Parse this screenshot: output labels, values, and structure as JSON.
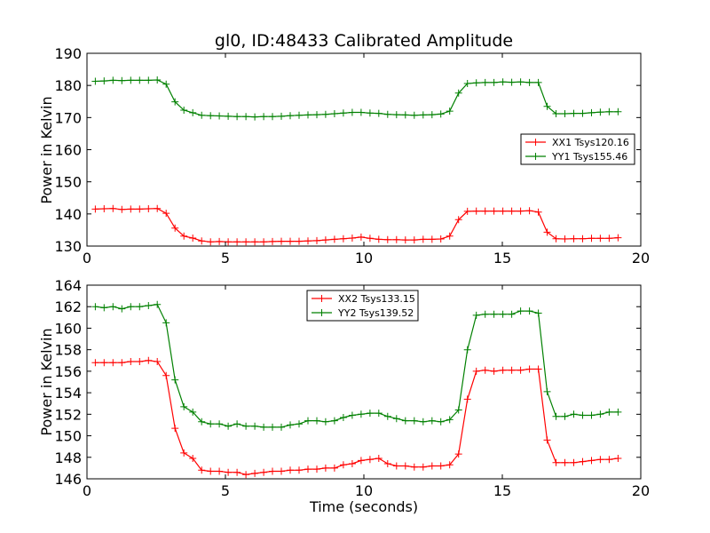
{
  "chart_data": [
    {
      "type": "line",
      "title": "gl0, ID:48433 Calibrated Amplitude",
      "xlabel": "",
      "ylabel": "Power in Kelvin",
      "xlim": [
        0,
        20
      ],
      "ylim": [
        130,
        190
      ],
      "xticks": [
        "0",
        "5",
        "10",
        "15",
        "20"
      ],
      "yticks": [
        "130",
        "140",
        "150",
        "160",
        "170",
        "180",
        "190"
      ],
      "grid": false,
      "legend_position": "center-right",
      "x": [
        0.3,
        0.62,
        0.94,
        1.26,
        1.58,
        1.9,
        2.22,
        2.54,
        2.86,
        3.18,
        3.5,
        3.82,
        4.14,
        4.46,
        4.78,
        5.1,
        5.42,
        5.74,
        6.06,
        6.38,
        6.7,
        7.02,
        7.34,
        7.66,
        7.98,
        8.3,
        8.62,
        8.94,
        9.26,
        9.58,
        9.9,
        10.22,
        10.54,
        10.86,
        11.18,
        11.5,
        11.82,
        12.14,
        12.46,
        12.78,
        13.1,
        13.42,
        13.74,
        14.06,
        14.38,
        14.7,
        15.02,
        15.34,
        15.66,
        15.98,
        16.3,
        16.62,
        16.94,
        17.26,
        17.58,
        17.9,
        18.22,
        18.54,
        18.86,
        19.18
      ],
      "series": [
        {
          "name": "XX1 Tsys120.16",
          "color": "#ff0000",
          "values": [
            141.5,
            141.6,
            141.7,
            141.4,
            141.5,
            141.5,
            141.6,
            141.7,
            140.2,
            135.6,
            133.1,
            132.5,
            131.6,
            131.3,
            131.4,
            131.3,
            131.3,
            131.3,
            131.3,
            131.3,
            131.4,
            131.5,
            131.5,
            131.5,
            131.6,
            131.7,
            131.9,
            132.1,
            132.3,
            132.5,
            132.8,
            132.4,
            132.1,
            132.0,
            132.0,
            131.9,
            131.9,
            132.1,
            132.1,
            132.2,
            133.1,
            138.2,
            140.8,
            140.9,
            140.9,
            140.9,
            140.9,
            140.9,
            140.9,
            141.0,
            140.6,
            134.3,
            132.3,
            132.2,
            132.3,
            132.3,
            132.4,
            132.4,
            132.4,
            132.6
          ]
        },
        {
          "name": "YY1 Tsys155.46",
          "color": "#008000",
          "values": [
            181.3,
            181.4,
            181.6,
            181.5,
            181.6,
            181.6,
            181.6,
            181.7,
            180.4,
            174.9,
            172.3,
            171.5,
            170.7,
            170.6,
            170.5,
            170.4,
            170.3,
            170.3,
            170.2,
            170.3,
            170.3,
            170.4,
            170.6,
            170.7,
            170.8,
            170.9,
            171.0,
            171.2,
            171.4,
            171.6,
            171.6,
            171.4,
            171.3,
            171.0,
            170.9,
            170.8,
            170.7,
            170.8,
            170.9,
            171.1,
            172.0,
            177.6,
            180.6,
            180.8,
            180.9,
            180.9,
            181.1,
            181.0,
            181.1,
            180.9,
            180.9,
            173.5,
            171.2,
            171.2,
            171.3,
            171.3,
            171.5,
            171.7,
            171.8,
            171.8
          ]
        }
      ]
    },
    {
      "type": "line",
      "title": "",
      "xlabel": "Time (seconds)",
      "ylabel": "Power in Kelvin",
      "xlim": [
        0,
        20
      ],
      "ylim": [
        146,
        164
      ],
      "xticks": [
        "0",
        "5",
        "10",
        "15",
        "20"
      ],
      "yticks": [
        "146",
        "148",
        "150",
        "152",
        "154",
        "156",
        "158",
        "160",
        "162",
        "164"
      ],
      "grid": false,
      "legend_position": "upper-center",
      "x": [
        0.3,
        0.62,
        0.94,
        1.26,
        1.58,
        1.9,
        2.22,
        2.54,
        2.86,
        3.18,
        3.5,
        3.82,
        4.14,
        4.46,
        4.78,
        5.1,
        5.42,
        5.74,
        6.06,
        6.38,
        6.7,
        7.02,
        7.34,
        7.66,
        7.98,
        8.3,
        8.62,
        8.94,
        9.26,
        9.58,
        9.9,
        10.22,
        10.54,
        10.86,
        11.18,
        11.5,
        11.82,
        12.14,
        12.46,
        12.78,
        13.1,
        13.42,
        13.74,
        14.06,
        14.38,
        14.7,
        15.02,
        15.34,
        15.66,
        15.98,
        16.3,
        16.62,
        16.94,
        17.26,
        17.58,
        17.9,
        18.22,
        18.54,
        18.86,
        19.18
      ],
      "series": [
        {
          "name": "XX2 Tsys133.15",
          "color": "#ff0000",
          "values": [
            156.8,
            156.8,
            156.8,
            156.8,
            156.9,
            156.9,
            157.0,
            156.9,
            155.6,
            150.7,
            148.4,
            147.9,
            146.8,
            146.7,
            146.7,
            146.6,
            146.6,
            146.4,
            146.5,
            146.6,
            146.7,
            146.7,
            146.8,
            146.8,
            146.9,
            146.9,
            147.0,
            147.0,
            147.3,
            147.4,
            147.7,
            147.8,
            147.9,
            147.4,
            147.2,
            147.2,
            147.1,
            147.1,
            147.2,
            147.2,
            147.3,
            148.3,
            153.4,
            156.0,
            156.1,
            156.0,
            156.1,
            156.1,
            156.1,
            156.2,
            156.2,
            149.6,
            147.5,
            147.5,
            147.5,
            147.6,
            147.7,
            147.8,
            147.8,
            147.9
          ]
        },
        {
          "name": "YY2 Tsys139.52",
          "color": "#008000",
          "values": [
            162.0,
            161.9,
            162.0,
            161.8,
            162.0,
            162.0,
            162.1,
            162.2,
            160.5,
            155.2,
            152.7,
            152.2,
            151.3,
            151.1,
            151.1,
            150.9,
            151.1,
            150.9,
            150.9,
            150.8,
            150.8,
            150.8,
            151.0,
            151.1,
            151.4,
            151.4,
            151.3,
            151.4,
            151.7,
            151.9,
            152.0,
            152.1,
            152.1,
            151.8,
            151.6,
            151.4,
            151.4,
            151.3,
            151.4,
            151.3,
            151.5,
            152.4,
            158.0,
            161.2,
            161.3,
            161.3,
            161.3,
            161.3,
            161.6,
            161.6,
            161.4,
            154.1,
            151.8,
            151.8,
            152.0,
            151.9,
            151.9,
            152.0,
            152.2,
            152.2
          ]
        }
      ]
    }
  ]
}
